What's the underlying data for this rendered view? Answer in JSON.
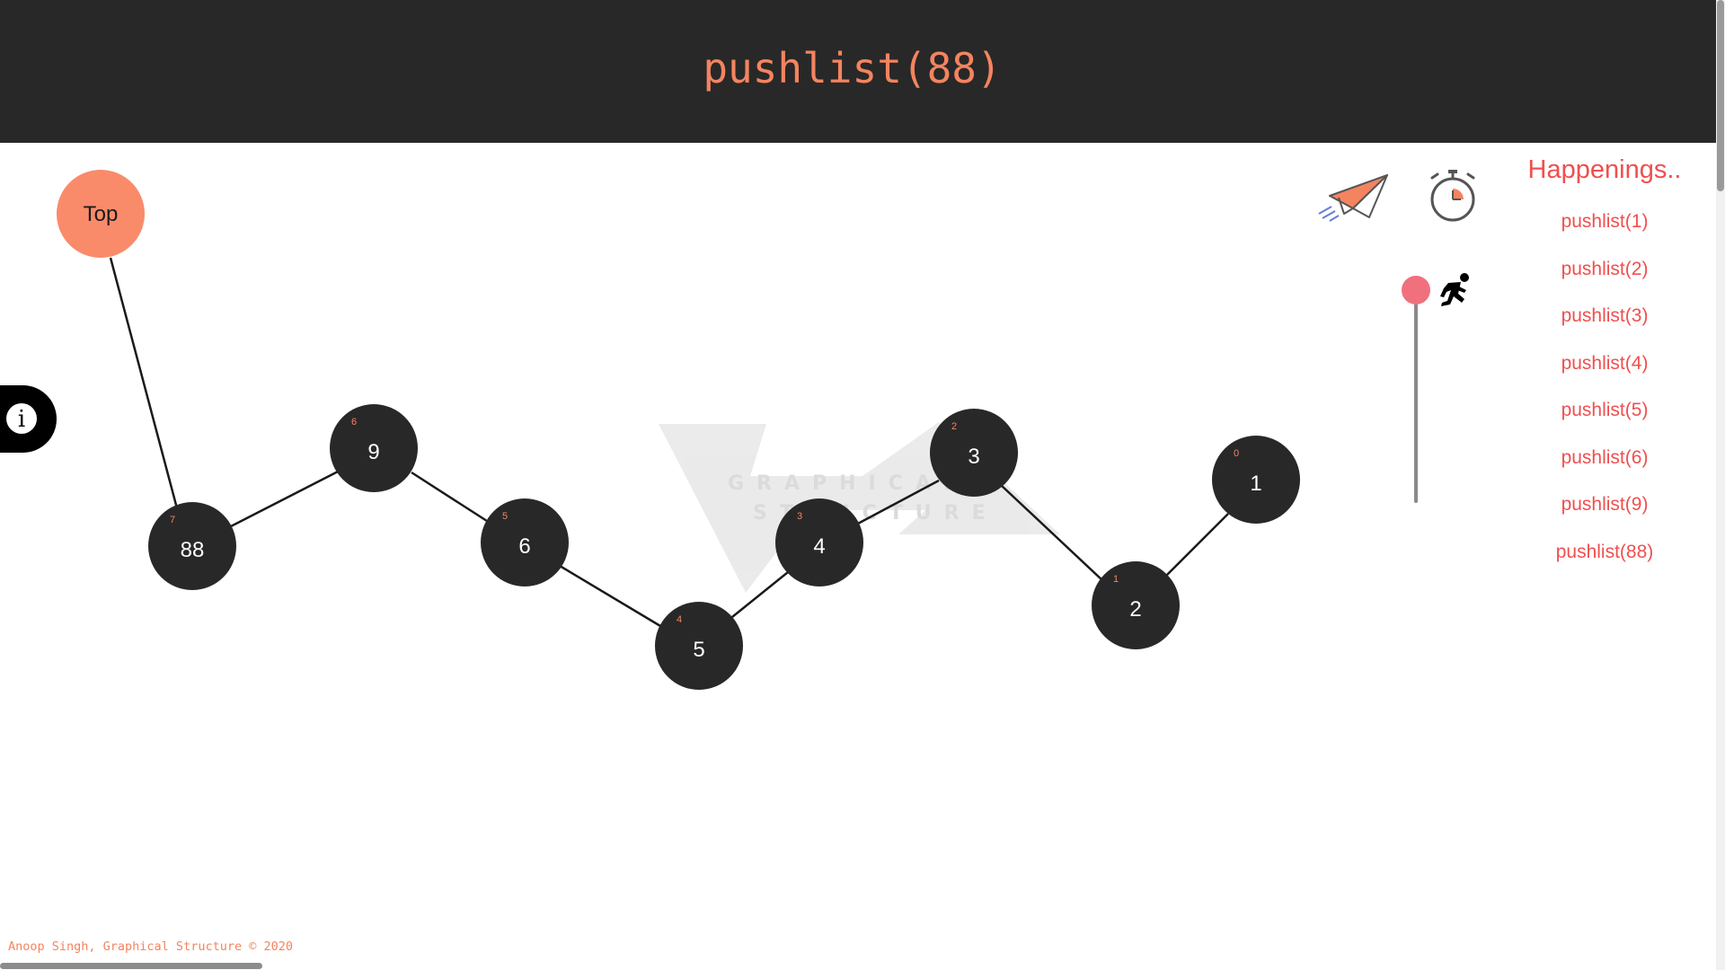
{
  "header": {
    "title": "pushlist(88)"
  },
  "top_pointer": {
    "label": "Top"
  },
  "watermark": {
    "line1": "GRAPHICAL",
    "line2": "STRUCTURE"
  },
  "nodes": [
    {
      "value": "88",
      "index": "7"
    },
    {
      "value": "9",
      "index": "6"
    },
    {
      "value": "6",
      "index": "5"
    },
    {
      "value": "5",
      "index": "4"
    },
    {
      "value": "4",
      "index": "3"
    },
    {
      "value": "3",
      "index": "2"
    },
    {
      "value": "2",
      "index": "1"
    },
    {
      "value": "1",
      "index": "0"
    }
  ],
  "controls": {
    "send_icon": "paper-plane-icon",
    "timer_icon": "stopwatch-icon",
    "speed_icon": "running-man-icon",
    "speed_level": 1.0
  },
  "info_button": {
    "glyph": "i"
  },
  "log": {
    "title": "Happenings..",
    "items": [
      "pushlist(1)",
      "pushlist(2)",
      "pushlist(3)",
      "pushlist(4)",
      "pushlist(5)",
      "pushlist(6)",
      "pushlist(9)",
      "pushlist(88)"
    ]
  },
  "footer": {
    "text": "Anoop Singh, Graphical Structure © 2020"
  },
  "colors": {
    "header_bg": "#282828",
    "accent": "#f4845f",
    "node_fill": "#282828",
    "top_fill": "#f98b6b",
    "log_text": "#f04f4f",
    "slider_thumb": "#f0707e"
  }
}
